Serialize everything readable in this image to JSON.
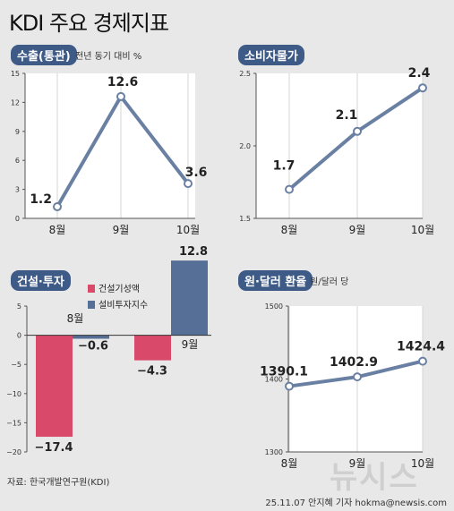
{
  "header": {
    "title": "KDI 주요 경제지표"
  },
  "footer": {
    "source": "자료: 한국개발연구원(KDI)",
    "credit": "25.11.07 안지혜 기자 hokma@newsis.com",
    "watermark": "뉴시스"
  },
  "chart_data": [
    {
      "type": "line",
      "title": "수출(통관)",
      "subtitle": "전년 동기 대비 %",
      "categories": [
        "8월",
        "9월",
        "10월"
      ],
      "values": [
        1.2,
        12.6,
        3.6
      ],
      "value_labels": [
        "1.2",
        "12.6",
        "3.6"
      ],
      "ylim": [
        0,
        15
      ],
      "yticks": [
        0,
        3,
        6,
        9,
        12,
        15
      ],
      "ytick_labels": [
        "0",
        "3",
        "6",
        "9",
        "12",
        "15"
      ]
    },
    {
      "type": "line",
      "title": "소비자물가",
      "categories": [
        "8월",
        "9월",
        "10월"
      ],
      "values": [
        1.7,
        2.1,
        2.4
      ],
      "value_labels": [
        "1.7",
        "2.1",
        "2.4"
      ],
      "ylim": [
        1.5,
        2.5
      ],
      "yticks": [
        1.5,
        2.0,
        2.5
      ],
      "ytick_labels": [
        "1.5",
        "2.0",
        "2.5"
      ]
    },
    {
      "type": "bar",
      "title": "건설·투자",
      "categories": [
        "8월",
        "9월"
      ],
      "series": [
        {
          "name": "건설기성액",
          "color": "#d94a6a",
          "values": [
            -17.4,
            -4.3
          ],
          "value_labels": [
            "−17.4",
            "−4.3"
          ]
        },
        {
          "name": "설비투자지수",
          "color": "#566f96",
          "values": [
            -0.6,
            12.8
          ],
          "value_labels": [
            "−0.6",
            "12.8"
          ]
        }
      ],
      "ylim": [
        -20,
        5
      ],
      "yticks": [
        5,
        0,
        -5,
        -10,
        -15,
        -20
      ],
      "ytick_labels": [
        "5",
        "0",
        "−5",
        "−10",
        "−15",
        "−20"
      ]
    },
    {
      "type": "line",
      "title": "원·달러 환율",
      "subtitle": "원/달러 당",
      "categories": [
        "8월",
        "9월",
        "10월"
      ],
      "values": [
        1390.1,
        1402.9,
        1424.4
      ],
      "value_labels": [
        "1390.1",
        "1402.9",
        "1424.4"
      ],
      "ylim": [
        1300,
        1500
      ],
      "yticks": [
        1300,
        1400,
        1500
      ],
      "ytick_labels": [
        "1300",
        "1400",
        "1500"
      ]
    }
  ]
}
